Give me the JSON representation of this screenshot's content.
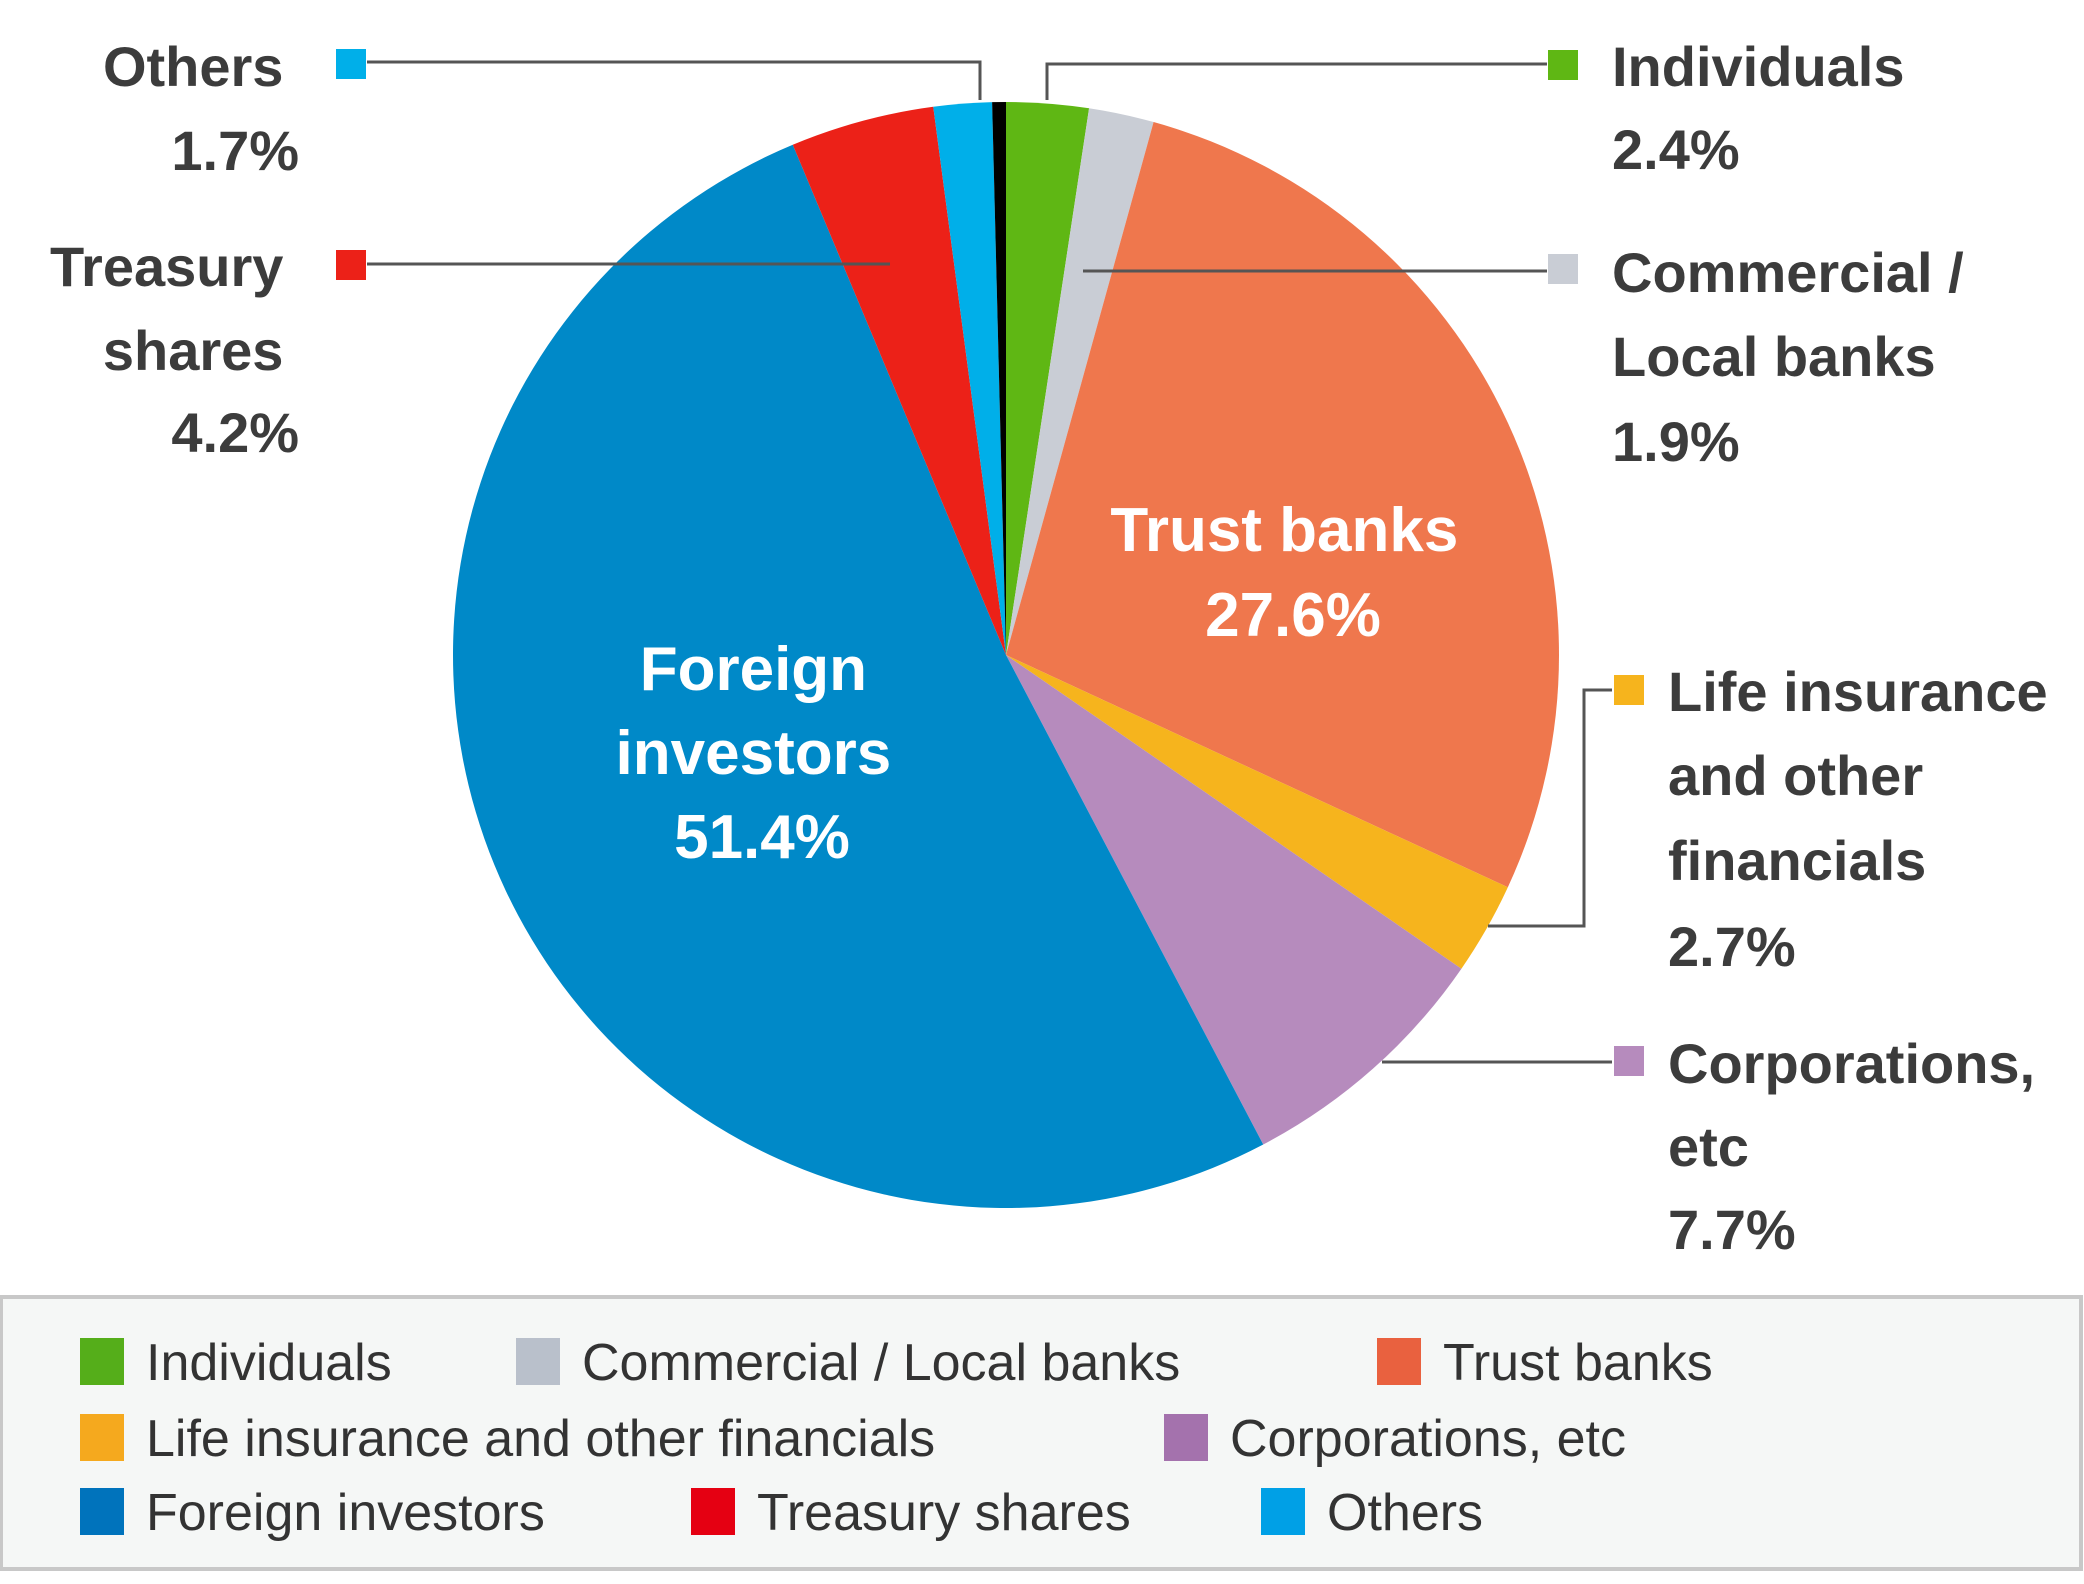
{
  "chart_data": {
    "type": "pie",
    "start": "top",
    "direction": "clockwise",
    "slices": [
      {
        "name": "Individuals",
        "label": [
          "Individuals"
        ],
        "value": 2.4,
        "pct": "2.4%",
        "color": "#5fb714",
        "legend_color": "#55ae1a"
      },
      {
        "name": "Commercial  / Local banks",
        "label": [
          "Commercial /",
          "Local banks"
        ],
        "value": 1.9,
        "pct": "1.9%",
        "color": "#c9cdd5",
        "legend_color": "#b9c0cb"
      },
      {
        "name": "Trust banks",
        "label": [
          "Trust banks"
        ],
        "value": 27.6,
        "pct": "27.6%",
        "color": "#ef774d",
        "legend_color": "#e9613f"
      },
      {
        "name": "Life insurance and other financials",
        "label": [
          "Life insurance",
          "and other",
          "financials"
        ],
        "value": 2.7,
        "pct": "2.7%",
        "color": "#f6b41d",
        "legend_color": "#f5a91e"
      },
      {
        "name": "Corporations, etc",
        "label": [
          "Corporations,",
          "etc"
        ],
        "value": 7.7,
        "pct": "7.7%",
        "color": "#b68bbd",
        "legend_color": "#a472ad"
      },
      {
        "name": "Foreign investors",
        "label": [
          "Foreign",
          "investors"
        ],
        "value": 51.4,
        "pct": "51.4%",
        "color": "#0089c8",
        "legend_color": "#0073bc"
      },
      {
        "name": "Treasury shares",
        "label": [
          "Treasury",
          "shares"
        ],
        "value": 4.2,
        "pct": "4.2%",
        "color": "#ec2118",
        "legend_color": "#e50012"
      },
      {
        "name": "Others",
        "label": [
          "Others"
        ],
        "value": 1.7,
        "pct": "1.7%",
        "color": "#00afe9",
        "legend_color": "#00a0e6"
      }
    ],
    "legend_placement": "bottom"
  }
}
